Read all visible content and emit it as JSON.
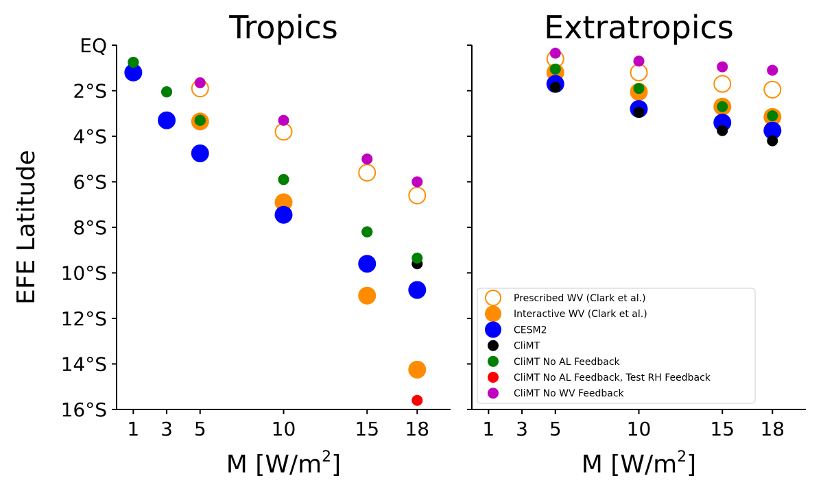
{
  "chart_data": [
    {
      "type": "scatter",
      "title": "Tropics",
      "xlabel": "M [W/m²]",
      "xlabel_main": "M [W/m",
      "xlabel_sup": "2",
      "xlabel_end": "]",
      "ylabel": "EFE Latitude",
      "xlim": [
        0,
        20
      ],
      "ylim": [
        0,
        16
      ],
      "y_inverted": true,
      "xticks": [
        1,
        3,
        5,
        10,
        15,
        18
      ],
      "xtick_labels": [
        "1",
        "3",
        "5",
        "10",
        "15",
        "18"
      ],
      "yticks": [
        0,
        2,
        4,
        6,
        8,
        10,
        12,
        14,
        16
      ],
      "ytick_labels": [
        "EQ",
        "2°S",
        "4°S",
        "6°S",
        "8°S",
        "10°S",
        "12°S",
        "14°S",
        "16°S"
      ],
      "series": [
        {
          "name": "Prescribed WV (Clark et al.)",
          "color": "#ff8c00",
          "filled": false,
          "size": "large",
          "points": [
            {
              "x": 5,
              "y": 1.9
            },
            {
              "x": 10,
              "y": 3.8
            },
            {
              "x": 15,
              "y": 5.6
            },
            {
              "x": 18,
              "y": 6.6
            }
          ]
        },
        {
          "name": "Interactive WV (Clark et al.)",
          "color": "#ff8c00",
          "filled": true,
          "size": "large",
          "points": [
            {
              "x": 5,
              "y": 3.35
            },
            {
              "x": 10,
              "y": 6.9
            },
            {
              "x": 15,
              "y": 11.0
            },
            {
              "x": 18,
              "y": 14.25
            }
          ]
        },
        {
          "name": "CESM2",
          "color": "#0000ff",
          "filled": true,
          "size": "large",
          "points": [
            {
              "x": 1,
              "y": 1.2
            },
            {
              "x": 3,
              "y": 3.3
            },
            {
              "x": 5,
              "y": 4.75
            },
            {
              "x": 10,
              "y": 7.45
            },
            {
              "x": 15,
              "y": 9.6
            },
            {
              "x": 18,
              "y": 10.75
            }
          ]
        },
        {
          "name": "CliMT",
          "color": "#000000",
          "filled": true,
          "size": "small",
          "points": [
            {
              "x": 1,
              "y": 0.75
            },
            {
              "x": 3,
              "y": 2.05
            },
            {
              "x": 5,
              "y": 3.3
            },
            {
              "x": 10,
              "y": 5.9
            },
            {
              "x": 15,
              "y": 8.2
            },
            {
              "x": 18,
              "y": 9.6
            }
          ]
        },
        {
          "name": "CliMT No AL Feedback",
          "color": "#008000",
          "filled": true,
          "size": "small",
          "points": [
            {
              "x": 1,
              "y": 0.75
            },
            {
              "x": 3,
              "y": 2.05
            },
            {
              "x": 5,
              "y": 3.3
            },
            {
              "x": 10,
              "y": 5.9
            },
            {
              "x": 15,
              "y": 8.2
            },
            {
              "x": 18,
              "y": 9.35
            }
          ]
        },
        {
          "name": "CliMT No AL Feedback, Test RH Feedback",
          "color": "#ff0000",
          "filled": true,
          "size": "small",
          "points": [
            {
              "x": 18,
              "y": 15.6
            }
          ]
        },
        {
          "name": "CliMT No WV Feedback",
          "color": "#c000c0",
          "filled": true,
          "size": "small",
          "points": [
            {
              "x": 5,
              "y": 1.65
            },
            {
              "x": 10,
              "y": 3.3
            },
            {
              "x": 15,
              "y": 5.0
            },
            {
              "x": 18,
              "y": 6.0
            }
          ]
        }
      ]
    },
    {
      "type": "scatter",
      "title": "Extratropics",
      "xlabel": "M [W/m²]",
      "xlabel_main": "M [W/m",
      "xlabel_sup": "2",
      "xlabel_end": "]",
      "xlim": [
        0,
        20
      ],
      "ylim": [
        0,
        16
      ],
      "y_inverted": true,
      "shared_y": true,
      "xticks": [
        1,
        3,
        5,
        10,
        15,
        18
      ],
      "xtick_labels": [
        "1",
        "3",
        "5",
        "10",
        "15",
        "18"
      ],
      "yticks": [
        0,
        2,
        4,
        6,
        8,
        10,
        12,
        14,
        16
      ],
      "legend_position": "lower-right",
      "series": [
        {
          "name": "Prescribed WV (Clark et al.)",
          "color": "#ff8c00",
          "filled": false,
          "size": "large",
          "points": [
            {
              "x": 5,
              "y": 0.6
            },
            {
              "x": 10,
              "y": 1.2
            },
            {
              "x": 15,
              "y": 1.7
            },
            {
              "x": 18,
              "y": 1.95
            }
          ]
        },
        {
          "name": "Interactive WV (Clark et al.)",
          "color": "#ff8c00",
          "filled": true,
          "size": "large",
          "points": [
            {
              "x": 5,
              "y": 1.2
            },
            {
              "x": 10,
              "y": 2.05
            },
            {
              "x": 15,
              "y": 2.7
            },
            {
              "x": 18,
              "y": 3.15
            }
          ]
        },
        {
          "name": "CESM2",
          "color": "#0000ff",
          "filled": true,
          "size": "large",
          "points": [
            {
              "x": 5,
              "y": 1.7
            },
            {
              "x": 10,
              "y": 2.8
            },
            {
              "x": 15,
              "y": 3.4
            },
            {
              "x": 18,
              "y": 3.75
            }
          ]
        },
        {
          "name": "CliMT",
          "color": "#000000",
          "filled": true,
          "size": "small",
          "points": [
            {
              "x": 5,
              "y": 1.85
            },
            {
              "x": 10,
              "y": 2.95
            },
            {
              "x": 15,
              "y": 3.75
            },
            {
              "x": 18,
              "y": 4.2
            }
          ]
        },
        {
          "name": "CliMT No AL Feedback",
          "color": "#008000",
          "filled": true,
          "size": "small",
          "points": [
            {
              "x": 5,
              "y": 1.05
            },
            {
              "x": 10,
              "y": 1.9
            },
            {
              "x": 15,
              "y": 2.7
            },
            {
              "x": 18,
              "y": 3.1
            }
          ]
        },
        {
          "name": "CliMT No WV Feedback",
          "color": "#c000c0",
          "filled": true,
          "size": "small",
          "points": [
            {
              "x": 5,
              "y": 0.35
            },
            {
              "x": 10,
              "y": 0.7
            },
            {
              "x": 15,
              "y": 0.95
            },
            {
              "x": 18,
              "y": 1.1
            }
          ]
        }
      ]
    }
  ],
  "legend": {
    "items": [
      {
        "label": "Prescribed WV (Clark et al.)",
        "color": "#ff8c00",
        "filled": false,
        "size": "large"
      },
      {
        "label": "Interactive WV (Clark et al.)",
        "color": "#ff8c00",
        "filled": true,
        "size": "large"
      },
      {
        "label": "CESM2",
        "color": "#0000ff",
        "filled": true,
        "size": "large"
      },
      {
        "label": "CliMT",
        "color": "#000000",
        "filled": true,
        "size": "small"
      },
      {
        "label": "CliMT No AL Feedback",
        "color": "#008000",
        "filled": true,
        "size": "small"
      },
      {
        "label": "CliMT No AL Feedback, Test RH Feedback",
        "color": "#ff0000",
        "filled": true,
        "size": "small"
      },
      {
        "label": "CliMT No WV Feedback",
        "color": "#c000c0",
        "filled": true,
        "size": "small"
      }
    ]
  }
}
